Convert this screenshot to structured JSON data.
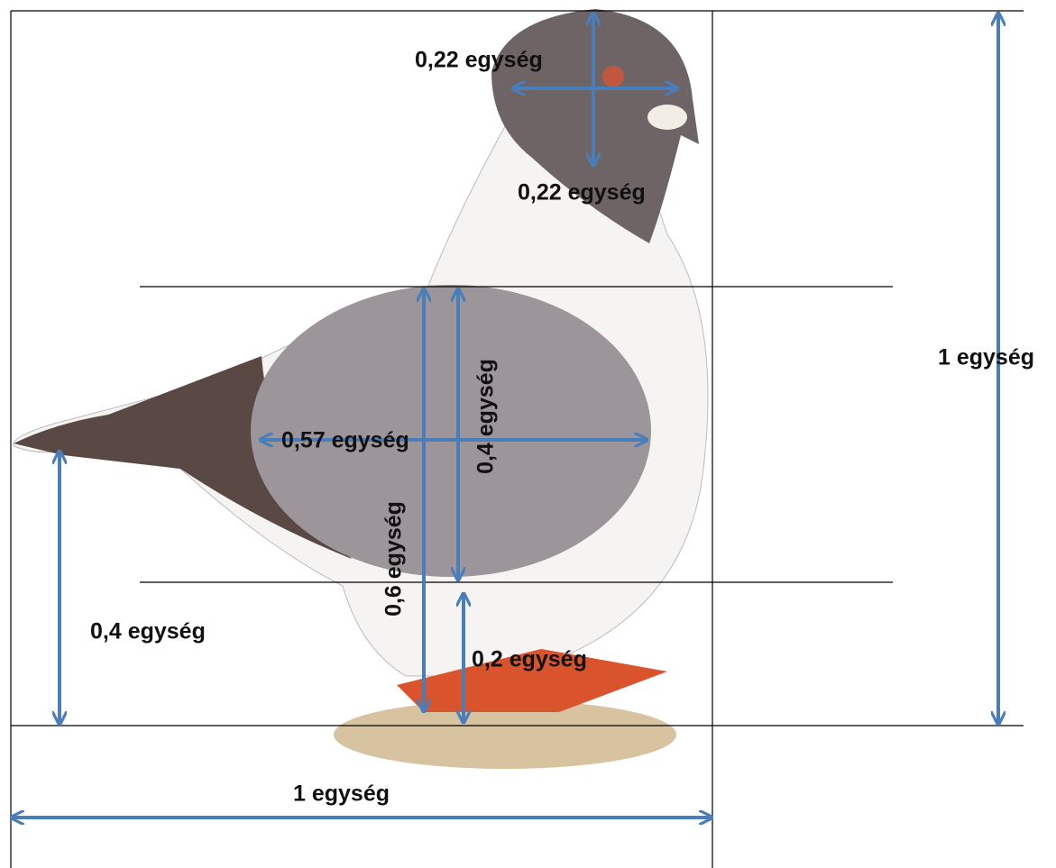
{
  "labels": [
    "0,22 egység",
    "0,22 egység",
    "1 egység",
    "0,57 egység",
    "0,4 egység",
    "0,6 egység",
    "0,4 egység",
    "0,2 egység",
    "1 egység"
  ]
}
